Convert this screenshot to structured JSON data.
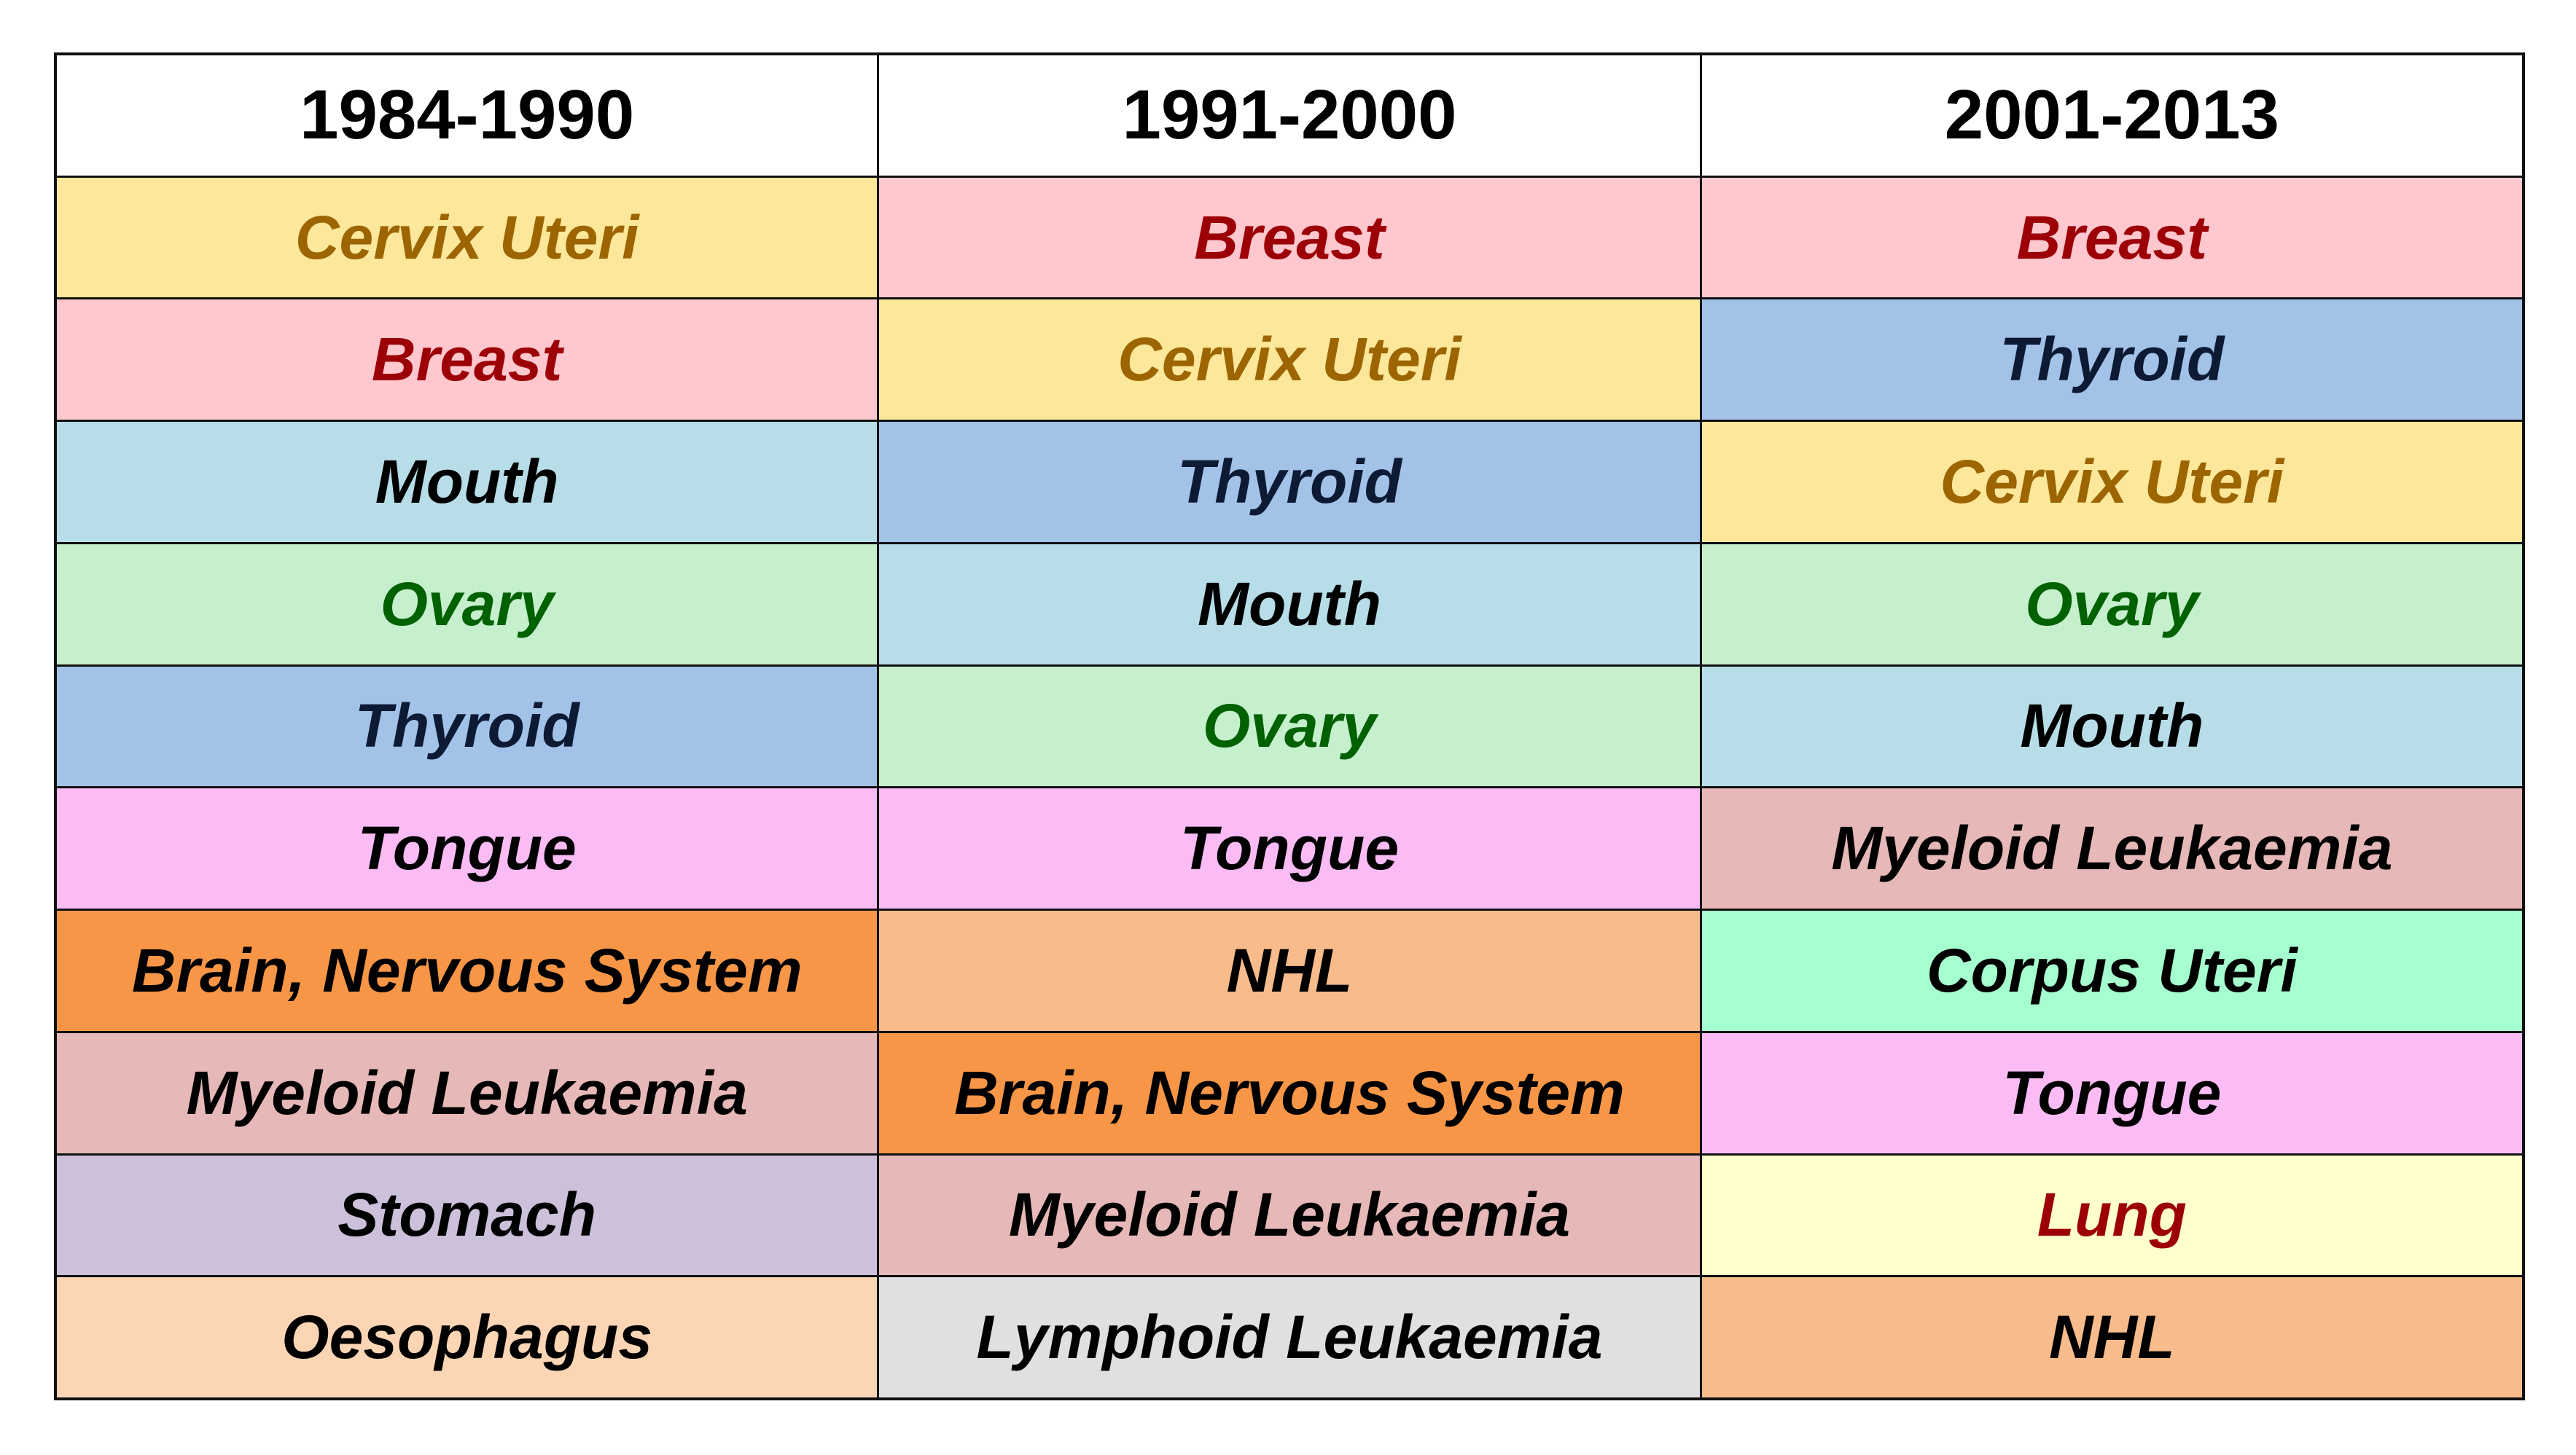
{
  "chart_data": {
    "type": "table",
    "columns": [
      "1984-1990",
      "1991-2000",
      "2001-2013"
    ],
    "rows": [
      [
        "Cervix Uteri",
        "Breast",
        "Breast"
      ],
      [
        "Breast",
        "Cervix Uteri",
        "Thyroid"
      ],
      [
        "Mouth",
        "Thyroid",
        "Cervix Uteri"
      ],
      [
        "Ovary",
        "Mouth",
        "Ovary"
      ],
      [
        "Thyroid",
        "Ovary",
        "Mouth"
      ],
      [
        "Tongue",
        "Tongue",
        "Myeloid Leukaemia"
      ],
      [
        "Brain, Nervous System",
        "NHL",
        "Corpus Uteri"
      ],
      [
        "Myeloid Leukaemia",
        "Brain, Nervous System",
        "Tongue"
      ],
      [
        "Stomach",
        "Myeloid Leukaemia",
        "Lung"
      ],
      [
        "Oesophagus",
        "Lymphoid Leukaemia",
        "NHL"
      ]
    ],
    "cell_styles": {
      "Cervix Uteri": {
        "bg": "#FCE79A",
        "color": "#9C6500"
      },
      "Breast": {
        "bg": "#FFC7CE",
        "color": "#9C0006"
      },
      "Mouth": {
        "bg": "#B7DEE8",
        "color": "#000000"
      },
      "Ovary": {
        "bg": "#C6EFCE",
        "color": "#006100"
      },
      "Thyroid": {
        "bg": "#A3C2E8",
        "color": "#0D1A33"
      },
      "Tongue": {
        "bg": "#FBBCF5",
        "color": "#000000"
      },
      "Brain, Nervous System": {
        "bg": "#F79646",
        "color": "#000000"
      },
      "Myeloid Leukaemia": {
        "bg": "#E6B8B7",
        "color": "#000000"
      },
      "Stomach": {
        "bg": "#CCC0DA",
        "color": "#000000"
      },
      "Oesophagus": {
        "bg": "#FCD5B4",
        "color": "#000000"
      },
      "NHL": {
        "bg": "#F8BC8C",
        "color": "#000000"
      },
      "Corpus Uteri": {
        "bg": "#A6FFCE",
        "color": "#000000"
      },
      "Lung": {
        "bg": "#FFFFCC",
        "color": "#9C0006"
      },
      "Lymphoid Leukaemia": {
        "bg": "#E0E0E0",
        "color": "#000000"
      }
    }
  }
}
